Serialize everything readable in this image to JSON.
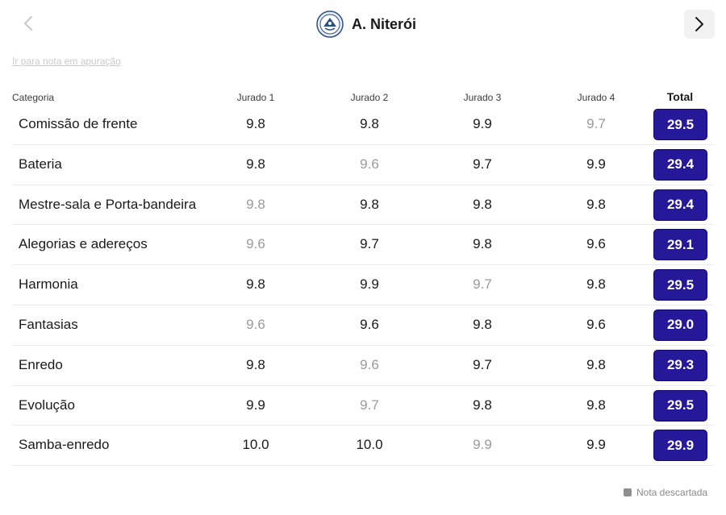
{
  "header": {
    "title": "A. Niterói",
    "prev_icon": "chevron-left-icon",
    "next_icon": "chevron-right-icon",
    "logo_icon": "school-crest-icon"
  },
  "link_text": "Ir para nota em apuração",
  "columns": {
    "category": "Categoria",
    "judges": [
      "Jurado 1",
      "Jurado 2",
      "Jurado 3",
      "Jurado 4"
    ],
    "total": "Total"
  },
  "rows": [
    {
      "category": "Comissão de frente",
      "scores": [
        "9.8",
        "9.8",
        "9.9",
        "9.7"
      ],
      "discarded": [
        false,
        false,
        false,
        true
      ],
      "total": "29.5"
    },
    {
      "category": "Bateria",
      "scores": [
        "9.8",
        "9.6",
        "9.7",
        "9.9"
      ],
      "discarded": [
        false,
        true,
        false,
        false
      ],
      "total": "29.4"
    },
    {
      "category": "Mestre-sala e Porta-bandeira",
      "scores": [
        "9.8",
        "9.8",
        "9.8",
        "9.8"
      ],
      "discarded": [
        true,
        false,
        false,
        false
      ],
      "total": "29.4"
    },
    {
      "category": "Alegorias e adereços",
      "scores": [
        "9.6",
        "9.7",
        "9.8",
        "9.6"
      ],
      "discarded": [
        true,
        false,
        false,
        false
      ],
      "total": "29.1"
    },
    {
      "category": "Harmonia",
      "scores": [
        "9.8",
        "9.9",
        "9.7",
        "9.8"
      ],
      "discarded": [
        false,
        false,
        true,
        false
      ],
      "total": "29.5"
    },
    {
      "category": "Fantasias",
      "scores": [
        "9.6",
        "9.6",
        "9.8",
        "9.6"
      ],
      "discarded": [
        true,
        false,
        false,
        false
      ],
      "total": "29.0"
    },
    {
      "category": "Enredo",
      "scores": [
        "9.8",
        "9.6",
        "9.7",
        "9.8"
      ],
      "discarded": [
        false,
        true,
        false,
        false
      ],
      "total": "29.3"
    },
    {
      "category": "Evolução",
      "scores": [
        "9.9",
        "9.7",
        "9.8",
        "9.8"
      ],
      "discarded": [
        false,
        true,
        false,
        false
      ],
      "total": "29.5"
    },
    {
      "category": "Samba-enredo",
      "scores": [
        "10.0",
        "10.0",
        "9.9",
        "9.9"
      ],
      "discarded": [
        false,
        false,
        true,
        false
      ],
      "total": "29.9"
    }
  ],
  "legend": {
    "label": "Nota descartada",
    "swatch_color": "#8f8f8f"
  },
  "colors": {
    "total_badge": "#251999",
    "discarded_text": "#9a9a9a"
  }
}
